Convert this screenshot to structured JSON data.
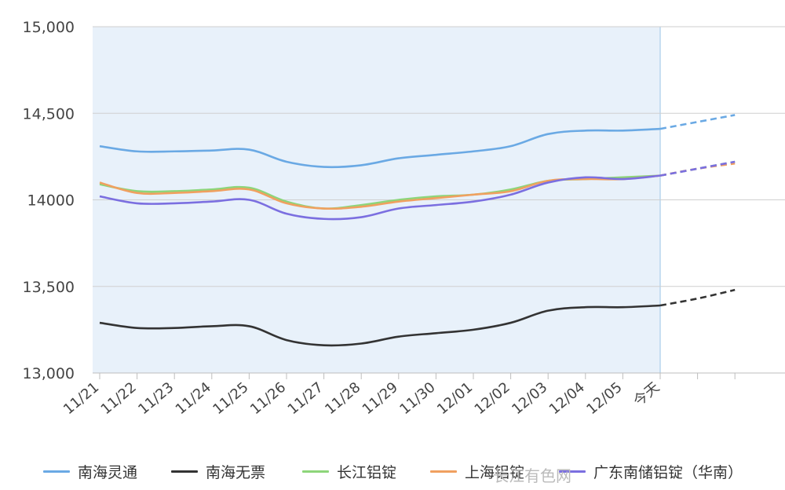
{
  "chart_data": {
    "type": "line",
    "categories": [
      "11/21",
      "11/22",
      "11/23",
      "11/24",
      "11/25",
      "11/26",
      "11/27",
      "11/28",
      "11/29",
      "11/30",
      "12/01",
      "12/02",
      "12/03",
      "12/04",
      "12/05",
      "今天"
    ],
    "ylim": [
      13000,
      15000
    ],
    "yticks": [
      13000,
      13500,
      14000,
      14500,
      15000
    ],
    "ytick_labels": [
      "13,000",
      "13,500",
      "14000",
      "14,500",
      "15,000"
    ],
    "grid": true,
    "legend_position": "bottom",
    "shaded_range": [
      "11/21",
      "今天"
    ],
    "series": [
      {
        "name": "南海灵通",
        "color": "#6aa9e4",
        "values": [
          14310,
          14280,
          14280,
          14285,
          14290,
          14220,
          14190,
          14200,
          14240,
          14260,
          14280,
          14310,
          14380,
          14400,
          14400,
          14410
        ],
        "forecast": [
          14450,
          14490
        ]
      },
      {
        "name": "南海无票",
        "color": "#333333",
        "values": [
          13290,
          13260,
          13260,
          13270,
          13270,
          13190,
          13160,
          13170,
          13210,
          13230,
          13250,
          13290,
          13360,
          13380,
          13380,
          13390
        ],
        "forecast": [
          13430,
          13480
        ]
      },
      {
        "name": "长江铝锭",
        "color": "#8dd57a",
        "values": [
          14090,
          14050,
          14050,
          14060,
          14070,
          13990,
          13950,
          13970,
          14000,
          14020,
          14030,
          14060,
          14110,
          14120,
          14130,
          14140
        ],
        "forecast": [
          14180,
          14220
        ]
      },
      {
        "name": "上海铝锭",
        "color": "#f0a060",
        "values": [
          14100,
          14040,
          14040,
          14050,
          14060,
          13980,
          13950,
          13960,
          13990,
          14010,
          14030,
          14050,
          14110,
          14120,
          14120,
          14140
        ],
        "forecast": [
          14180,
          14210
        ]
      },
      {
        "name": "广东南储铝锭（华南）",
        "color": "#7b6fe0",
        "values": [
          14020,
          13980,
          13980,
          13990,
          14000,
          13920,
          13890,
          13900,
          13950,
          13970,
          13990,
          14030,
          14100,
          14130,
          14120,
          14140
        ],
        "forecast": [
          14180,
          14220
        ]
      }
    ]
  },
  "watermark_text": "长江有色网"
}
